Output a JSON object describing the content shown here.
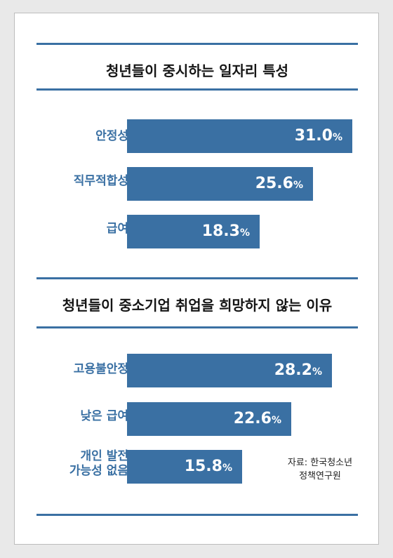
{
  "chart_data": [
    {
      "type": "bar",
      "orientation": "horizontal",
      "title": "청년들이 중시하는 일자리 특성",
      "categories": [
        "안정성",
        "직무적합성",
        "급여"
      ],
      "values": [
        31.0,
        25.6,
        18.3
      ],
      "value_labels": [
        "31.0",
        "25.6",
        "18.3"
      ],
      "unit": "%",
      "bar_color": "#3a70a3"
    },
    {
      "type": "bar",
      "orientation": "horizontal",
      "title": "청년들이 중소기업 취업을 희망하지 않는 이유",
      "categories": [
        "고용불안정",
        "낮은 급여",
        "개인 발전\n가능성 없음"
      ],
      "values": [
        28.2,
        22.6,
        15.8
      ],
      "value_labels": [
        "28.2",
        "22.6",
        "15.8"
      ],
      "unit": "%",
      "bar_color": "#3a70a3"
    }
  ],
  "source": "자료: 한국청소년\n정책연구원",
  "colors": {
    "accent": "#3a70a3",
    "title_text": "#151515",
    "page_bg": "#e9e9e9",
    "card_bg": "#ffffff"
  }
}
